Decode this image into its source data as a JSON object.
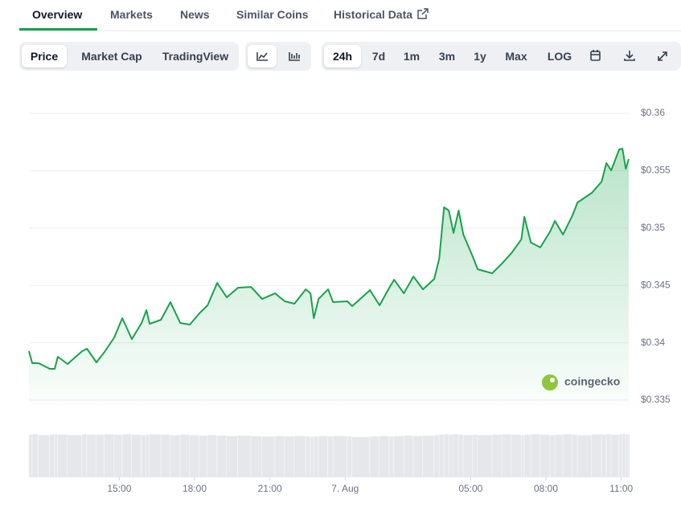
{
  "tabs": {
    "items": [
      "Overview",
      "Markets",
      "News",
      "Similar Coins",
      "Historical Data"
    ],
    "active": 0
  },
  "toolbar": {
    "metric": [
      "Price",
      "Market Cap",
      "TradingView"
    ],
    "metric_active": 0,
    "ranges": [
      "24h",
      "7d",
      "1m",
      "3m",
      "1y",
      "Max",
      "LOG"
    ],
    "range_active": 0
  },
  "watermark": "coingecko",
  "chart_data": {
    "type": "line",
    "x": [
      11.4,
      11.53,
      11.78,
      12.23,
      12.43,
      12.55,
      12.94,
      13.52,
      13.71,
      14.09,
      14.41,
      14.8,
      15.12,
      15.5,
      15.89,
      16.08,
      16.21,
      16.66,
      17.04,
      17.43,
      17.81,
      18.19,
      18.52,
      18.9,
      19.28,
      19.73,
      20.25,
      20.69,
      21.21,
      21.59,
      21.98,
      22.43,
      22.62,
      22.75,
      22.94,
      23.32,
      23.52,
      24.09,
      24.28,
      24.99,
      25.37,
      25.76,
      25.95,
      26.34,
      26.72,
      27.1,
      27.55,
      27.75,
      27.94,
      28.13,
      28.32,
      28.52,
      28.71,
      29.09,
      29.28,
      29.86,
      30.25,
      30.63,
      31.02,
      31.14,
      31.4,
      31.78,
      32.17,
      32.36,
      32.68,
      33.06,
      33.26,
      33.83,
      34.22,
      34.41,
      34.6,
      34.92,
      35.05,
      35.18,
      35.3
    ],
    "series": [
      {
        "color": "#16a34a",
        "values": [
          0.33927,
          0.33822,
          0.33822,
          0.33773,
          0.33773,
          0.33878,
          0.33815,
          0.33927,
          0.33948,
          0.33829,
          0.3392,
          0.34046,
          0.34214,
          0.34032,
          0.34172,
          0.34284,
          0.34165,
          0.342,
          0.34354,
          0.34172,
          0.34158,
          0.34256,
          0.34326,
          0.34522,
          0.34396,
          0.3448,
          0.34487,
          0.34382,
          0.34431,
          0.34361,
          0.3434,
          0.34466,
          0.34431,
          0.34214,
          0.34382,
          0.34466,
          0.34354,
          0.34361,
          0.34319,
          0.34459,
          0.34326,
          0.3448,
          0.3455,
          0.34431,
          0.34578,
          0.34466,
          0.34557,
          0.34733,
          0.35181,
          0.35153,
          0.34957,
          0.35153,
          0.34943,
          0.34747,
          0.34641,
          0.34606,
          0.34691,
          0.34782,
          0.34901,
          0.35097,
          0.34873,
          0.34831,
          0.34971,
          0.35062,
          0.34943,
          0.35111,
          0.35223,
          0.35307,
          0.35405,
          0.35566,
          0.35503,
          0.35685,
          0.35692,
          0.35517,
          0.35601
        ]
      }
    ],
    "volume": {
      "color": "#e5e7eb",
      "ylim": [
        0,
        100
      ],
      "values": [
        98,
        99,
        97,
        98,
        99,
        98,
        97,
        99,
        98,
        98,
        99,
        98,
        99,
        98,
        97,
        98,
        99,
        98,
        97,
        98,
        97,
        96,
        97,
        96,
        95,
        96,
        95,
        94,
        95,
        94,
        95,
        94,
        93,
        94,
        95,
        94,
        95,
        94,
        93,
        94,
        95,
        94,
        95,
        96,
        95,
        96,
        97,
        98,
        99,
        98,
        99,
        98,
        97,
        98,
        97,
        98,
        99,
        98,
        97,
        98,
        99,
        98,
        97,
        98,
        99,
        98,
        97,
        99,
        98,
        99,
        98,
        99,
        100,
        99,
        98
      ]
    },
    "xlim": [
      11.4,
      35.3
    ],
    "xticks": [
      {
        "value": 15,
        "label": "15:00"
      },
      {
        "value": 18,
        "label": "18:00"
      },
      {
        "value": 21,
        "label": "21:00"
      },
      {
        "value": 24,
        "label": "7. Aug"
      },
      {
        "value": 29,
        "label": "05:00"
      },
      {
        "value": 32,
        "label": "08:00"
      },
      {
        "value": 35,
        "label": "11:00"
      }
    ],
    "ylim": [
      0.335,
      0.36
    ],
    "yticks": [
      {
        "value": 0.335,
        "label": "$0.335"
      },
      {
        "value": 0.34,
        "label": "$0.34"
      },
      {
        "value": 0.345,
        "label": "$0.345"
      },
      {
        "value": 0.35,
        "label": "$0.35"
      },
      {
        "value": 0.355,
        "label": "$0.355"
      },
      {
        "value": 0.36,
        "label": "$0.36"
      }
    ],
    "grid": true
  }
}
